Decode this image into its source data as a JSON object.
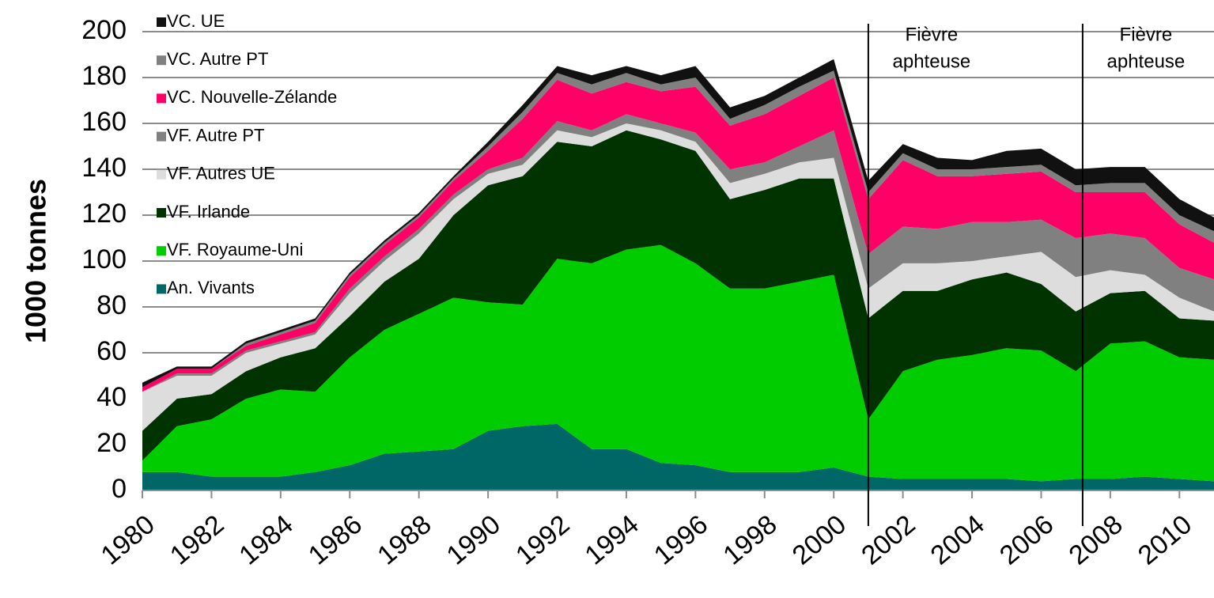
{
  "chart_data": {
    "type": "stacked_area",
    "y_label": "1000 tonnes",
    "x": [
      1980,
      1981,
      1982,
      1983,
      1984,
      1985,
      1986,
      1987,
      1988,
      1989,
      1990,
      1991,
      1992,
      1993,
      1994,
      1995,
      1996,
      1997,
      1998,
      1999,
      2000,
      2001,
      2002,
      2003,
      2004,
      2005,
      2006,
      2007,
      2008,
      2009,
      2010,
      2011
    ],
    "xlim": [
      1980,
      2011
    ],
    "xticks": [
      1980,
      1982,
      1984,
      1986,
      1988,
      1990,
      1992,
      1994,
      1996,
      1998,
      2000,
      2002,
      2004,
      2006,
      2008,
      2010
    ],
    "ylim": [
      0,
      200
    ],
    "yticks": [
      0,
      20,
      40,
      60,
      80,
      100,
      120,
      140,
      160,
      180,
      200
    ],
    "grid": true,
    "legend": "top-left",
    "series": [
      {
        "name": "An. Vivants",
        "color": "#006666",
        "values": [
          8,
          8,
          6,
          6,
          6,
          8,
          11,
          16,
          17,
          18,
          26,
          28,
          29,
          18,
          18,
          12,
          11,
          8,
          8,
          8,
          10,
          6,
          5,
          5,
          5,
          5,
          4,
          5,
          5,
          6,
          5,
          4
        ]
      },
      {
        "name": "VF. Royaume-Uni",
        "color": "#00cc00",
        "values": [
          5,
          20,
          25,
          34,
          38,
          35,
          47,
          54,
          60,
          66,
          56,
          53,
          72,
          81,
          87,
          95,
          88,
          80,
          80,
          83,
          84,
          25,
          47,
          52,
          54,
          57,
          57,
          47,
          59,
          59,
          53,
          53
        ]
      },
      {
        "name": "VF. Irlande",
        "color": "#003300",
        "values": [
          13,
          12,
          11,
          12,
          14,
          19,
          18,
          21,
          24,
          36,
          51,
          56,
          51,
          51,
          52,
          46,
          49,
          39,
          43,
          45,
          42,
          44,
          35,
          30,
          33,
          33,
          29,
          26,
          22,
          22,
          17,
          17
        ]
      },
      {
        "name": "VF. Autres UE",
        "color": "#dddddd",
        "values": [
          17,
          10,
          8,
          8,
          6,
          6,
          10,
          9,
          11,
          7,
          5,
          5,
          5,
          4,
          3,
          4,
          4,
          7,
          7,
          7,
          9,
          13,
          12,
          12,
          8,
          7,
          14,
          15,
          10,
          7,
          9,
          4
        ]
      },
      {
        "name": "VF. Autre PT",
        "color": "#808080",
        "values": [
          0,
          1,
          1,
          1,
          1,
          1,
          2,
          2,
          2,
          2,
          2,
          3,
          4,
          3,
          4,
          3,
          4,
          6,
          5,
          7,
          12,
          15,
          16,
          15,
          17,
          15,
          14,
          17,
          16,
          16,
          13,
          14
        ]
      },
      {
        "name": "VC. Nouvelle-Zélande",
        "color": "#ff0066",
        "values": [
          2,
          2,
          2,
          2,
          3,
          4,
          5,
          5,
          5,
          6,
          8,
          17,
          18,
          16,
          14,
          14,
          20,
          19,
          21,
          22,
          23,
          24,
          29,
          23,
          20,
          21,
          21,
          20,
          18,
          20,
          19,
          16
        ]
      },
      {
        "name": "VC. Autre PT",
        "color": "#808080",
        "values": [
          0,
          0,
          0,
          1,
          1,
          1,
          1,
          1,
          1,
          1,
          2,
          3,
          3,
          4,
          4,
          3,
          4,
          3,
          4,
          4,
          3,
          3,
          3,
          3,
          3,
          3,
          3,
          3,
          4,
          4,
          4,
          5
        ]
      },
      {
        "name": "VC. UE",
        "color": "#111111",
        "values": [
          2,
          1,
          1,
          1,
          1,
          1,
          1,
          1,
          1,
          1,
          2,
          3,
          3,
          4,
          3,
          4,
          5,
          5,
          4,
          4,
          5,
          5,
          4,
          5,
          4,
          7,
          7,
          7,
          7,
          7,
          7,
          6
        ]
      }
    ],
    "annotations": [
      {
        "x": 2001,
        "lines": [
          "Fièvre",
          "aphteuse"
        ]
      },
      {
        "x": 2007.2,
        "lines": [
          "Fièvre",
          "aphteuse"
        ]
      }
    ]
  }
}
